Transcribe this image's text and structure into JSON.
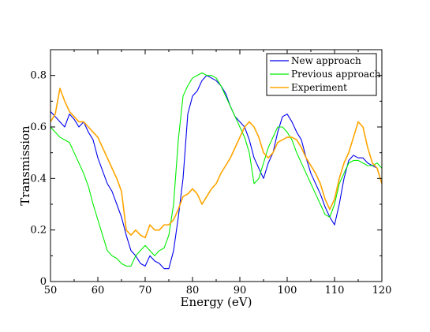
{
  "chart_data": {
    "type": "line",
    "title": "",
    "xlabel": "Energy (eV)",
    "ylabel": "Transmission",
    "xlim": [
      50,
      120
    ],
    "ylim": [
      0,
      0.9
    ],
    "xticks": [
      50,
      60,
      70,
      80,
      90,
      100,
      110,
      120
    ],
    "yticks": [
      0,
      0.2,
      0.4,
      0.6,
      0.8
    ],
    "xtick_labels": [
      "50",
      "60",
      "70",
      "80",
      "90",
      "100",
      "110",
      "120"
    ],
    "ytick_labels": [
      "0",
      "0.2",
      "0.4",
      "0.6",
      "0.8"
    ],
    "grid": false,
    "legend": {
      "placement": "top-right"
    },
    "series": [
      {
        "name": "New approach",
        "color": "#0000ee",
        "x": [
          50,
          51,
          52,
          53,
          54,
          55,
          56,
          57,
          58,
          59,
          60,
          61,
          62,
          63,
          64,
          65,
          66,
          67,
          68,
          69,
          70,
          71,
          72,
          73,
          74,
          75,
          76,
          77,
          78,
          79,
          80,
          81,
          82,
          83,
          84,
          85,
          86,
          87,
          88,
          89,
          90,
          91,
          92,
          93,
          94,
          95,
          96,
          97,
          98,
          99,
          100,
          101,
          102,
          103,
          104,
          105,
          106,
          107,
          108,
          109,
          110,
          111,
          112,
          113,
          114,
          115,
          116,
          117,
          118,
          119,
          120
        ],
        "y": [
          0.66,
          0.64,
          0.62,
          0.6,
          0.65,
          0.63,
          0.6,
          0.62,
          0.58,
          0.55,
          0.48,
          0.43,
          0.38,
          0.35,
          0.3,
          0.25,
          0.18,
          0.12,
          0.1,
          0.07,
          0.06,
          0.1,
          0.08,
          0.07,
          0.05,
          0.05,
          0.12,
          0.25,
          0.4,
          0.65,
          0.72,
          0.74,
          0.78,
          0.8,
          0.79,
          0.78,
          0.76,
          0.73,
          0.68,
          0.64,
          0.62,
          0.6,
          0.55,
          0.48,
          0.44,
          0.4,
          0.46,
          0.5,
          0.58,
          0.64,
          0.65,
          0.62,
          0.58,
          0.55,
          0.48,
          0.42,
          0.38,
          0.34,
          0.29,
          0.25,
          0.22,
          0.3,
          0.4,
          0.47,
          0.49,
          0.48,
          0.48,
          0.46,
          0.45,
          0.44,
          0.38
        ]
      },
      {
        "name": "Previous approach",
        "color": "#00ee00",
        "x": [
          50,
          51,
          52,
          53,
          54,
          55,
          56,
          57,
          58,
          59,
          60,
          61,
          62,
          63,
          64,
          65,
          66,
          67,
          68,
          69,
          70,
          71,
          72,
          73,
          74,
          75,
          76,
          77,
          78,
          79,
          80,
          81,
          82,
          83,
          84,
          85,
          86,
          87,
          88,
          89,
          90,
          91,
          92,
          93,
          94,
          95,
          96,
          97,
          98,
          99,
          100,
          101,
          102,
          103,
          104,
          105,
          106,
          107,
          108,
          109,
          110,
          111,
          112,
          113,
          114,
          115,
          116,
          117,
          118,
          119,
          120
        ],
        "y": [
          0.6,
          0.58,
          0.56,
          0.55,
          0.54,
          0.5,
          0.46,
          0.42,
          0.37,
          0.3,
          0.24,
          0.18,
          0.12,
          0.1,
          0.09,
          0.07,
          0.06,
          0.06,
          0.1,
          0.12,
          0.14,
          0.12,
          0.1,
          0.12,
          0.13,
          0.18,
          0.3,
          0.55,
          0.72,
          0.76,
          0.79,
          0.8,
          0.81,
          0.8,
          0.8,
          0.79,
          0.76,
          0.72,
          0.68,
          0.64,
          0.6,
          0.56,
          0.5,
          0.38,
          0.4,
          0.46,
          0.52,
          0.56,
          0.6,
          0.6,
          0.58,
          0.55,
          0.5,
          0.46,
          0.42,
          0.38,
          0.34,
          0.3,
          0.26,
          0.25,
          0.3,
          0.38,
          0.42,
          0.46,
          0.47,
          0.47,
          0.46,
          0.45,
          0.45,
          0.46,
          0.44
        ]
      },
      {
        "name": "Experiment",
        "color": "#ffa500",
        "x": [
          50,
          51,
          52,
          53,
          54,
          55,
          56,
          57,
          58,
          59,
          60,
          61,
          62,
          63,
          64,
          65,
          66,
          67,
          68,
          69,
          70,
          71,
          72,
          73,
          74,
          75,
          76,
          77,
          78,
          79,
          80,
          81,
          82,
          83,
          84,
          85,
          86,
          87,
          88,
          89,
          90,
          91,
          92,
          93,
          94,
          95,
          96,
          97,
          98,
          99,
          100,
          101,
          102,
          103,
          104,
          105,
          106,
          107,
          108,
          109,
          110,
          111,
          112,
          113,
          114,
          115,
          116,
          117,
          118,
          119,
          120
        ],
        "y": [
          0.62,
          0.65,
          0.75,
          0.7,
          0.66,
          0.64,
          0.62,
          0.62,
          0.6,
          0.58,
          0.56,
          0.52,
          0.48,
          0.44,
          0.4,
          0.35,
          0.2,
          0.18,
          0.2,
          0.18,
          0.17,
          0.22,
          0.2,
          0.2,
          0.22,
          0.22,
          0.24,
          0.28,
          0.33,
          0.34,
          0.36,
          0.34,
          0.3,
          0.33,
          0.36,
          0.38,
          0.42,
          0.45,
          0.48,
          0.52,
          0.56,
          0.6,
          0.62,
          0.6,
          0.56,
          0.5,
          0.48,
          0.5,
          0.54,
          0.55,
          0.56,
          0.56,
          0.55,
          0.52,
          0.48,
          0.45,
          0.42,
          0.38,
          0.32,
          0.28,
          0.32,
          0.4,
          0.46,
          0.5,
          0.56,
          0.62,
          0.6,
          0.52,
          0.46,
          0.44,
          0.38
        ]
      }
    ]
  }
}
